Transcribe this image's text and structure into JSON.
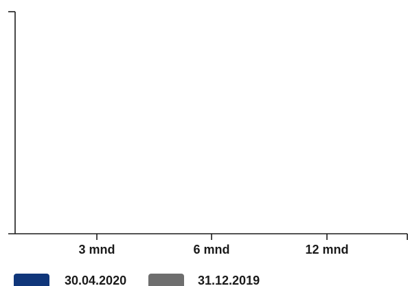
{
  "chart_data": {
    "type": "bar",
    "categories": [
      "3 mnd",
      "6 mnd",
      "12 mnd"
    ],
    "series": [
      {
        "name": "30.04.2020",
        "values": [
          null,
          null,
          null
        ],
        "color": "#10367a"
      },
      {
        "name": "31.12.2019",
        "values": [
          null,
          null,
          null
        ],
        "color": "#6e6e6e"
      }
    ],
    "title": "",
    "xlabel": "",
    "ylabel": "",
    "grid": false,
    "legend_position": "bottom-left"
  }
}
